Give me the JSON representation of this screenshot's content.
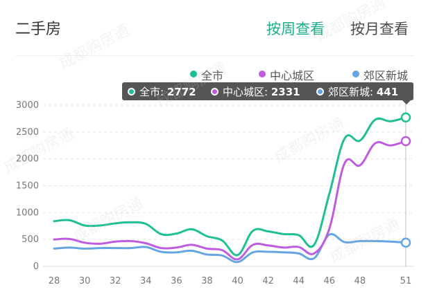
{
  "header": {
    "title": "二手房",
    "tabs": [
      {
        "label": "按周查看",
        "active": true
      },
      {
        "label": "按月查看",
        "active": false
      }
    ]
  },
  "watermark_text": "成都购房通",
  "colors": {
    "accent": "#1aae8c",
    "series": [
      "#1dbf93",
      "#bf5be0",
      "#66a5e3"
    ]
  },
  "tooltip": {
    "items": [
      {
        "label": "全市: ",
        "value": "2772"
      },
      {
        "label": "中心城区: ",
        "value": "2331"
      },
      {
        "label": "郊区新城: ",
        "value": "441"
      }
    ]
  },
  "chart_data": {
    "type": "line",
    "x": [
      28,
      29,
      30,
      31,
      32,
      33,
      34,
      35,
      36,
      37,
      38,
      39,
      40,
      41,
      42,
      43,
      44,
      45,
      46,
      47,
      48,
      49,
      50,
      51
    ],
    "xticks": [
      "28",
      "30",
      "32",
      "34",
      "36",
      "38",
      "40",
      "42",
      "44",
      "46",
      "48",
      "51"
    ],
    "xtick_values": [
      28,
      30,
      32,
      34,
      36,
      38,
      40,
      42,
      44,
      46,
      48,
      51
    ],
    "yticks": [
      "0",
      "500",
      "1000",
      "1500",
      "2000",
      "2500",
      "3000"
    ],
    "ylim": [
      0,
      3000
    ],
    "grid": "horizontal dashed",
    "legend_position": "top-right",
    "series": [
      {
        "name": "全市",
        "values": [
          840,
          860,
          760,
          760,
          800,
          820,
          790,
          600,
          610,
          690,
          560,
          480,
          210,
          660,
          650,
          600,
          580,
          400,
          1350,
          2380,
          2340,
          2730,
          2700,
          2772
        ]
      },
      {
        "name": "中心城区",
        "values": [
          500,
          510,
          440,
          420,
          460,
          470,
          430,
          340,
          350,
          400,
          330,
          300,
          130,
          400,
          390,
          350,
          360,
          240,
          700,
          1920,
          1880,
          2290,
          2250,
          2331
        ]
      },
      {
        "name": "郊区新城",
        "values": [
          330,
          350,
          330,
          340,
          340,
          340,
          360,
          270,
          260,
          290,
          220,
          200,
          80,
          260,
          270,
          260,
          240,
          150,
          590,
          450,
          470,
          470,
          460,
          441
        ]
      }
    ],
    "highlighted_x": 51
  }
}
